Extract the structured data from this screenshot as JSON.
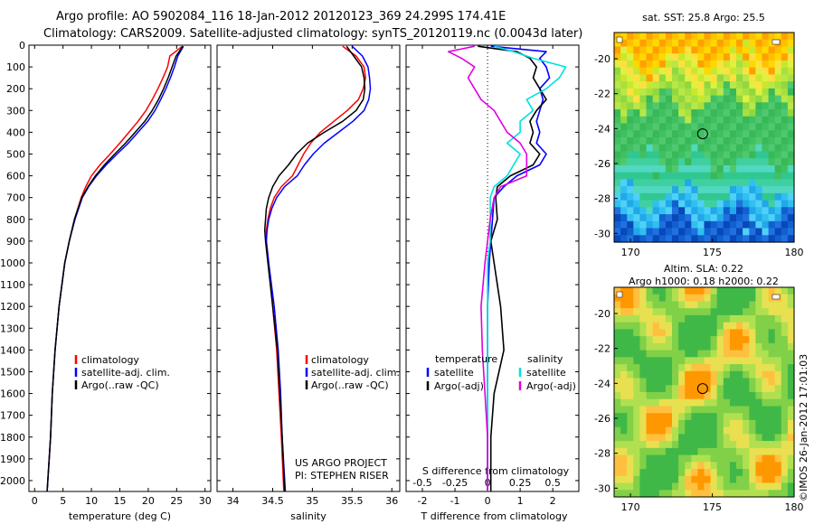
{
  "header": {
    "title_line1": "Argo profile: AO 5902084_116 18-Jan-2012 20120123_369 24.299S 174.41E",
    "title_line2": "Climatology: CARS2009. Satellite-adjusted climatology: synTS_20120119.nc (0.0043d later)"
  },
  "credits": {
    "project": "US ARGO PROJECT",
    "pi": "PI: STEPHEN RISER",
    "stamp": "©IMOS 26-Jan-2012 17:01:03"
  },
  "colors": {
    "climatology": "#ff0000",
    "satellite": "#0000ff",
    "argo": "#000000",
    "satellite_salinity": "#00e0e0",
    "argo_salinity_diff": "#e000e0"
  },
  "chart_data": [
    {
      "id": "temperature",
      "type": "line",
      "xlabel": "temperature (deg C)",
      "ylabel": "",
      "xlim": [
        -1,
        31
      ],
      "ylim": [
        2050,
        0
      ],
      "xticks": [
        0,
        5,
        10,
        15,
        20,
        25,
        30
      ],
      "yticks": [
        0,
        100,
        200,
        300,
        400,
        500,
        600,
        700,
        800,
        900,
        1000,
        1100,
        1200,
        1300,
        1400,
        1500,
        1600,
        1700,
        1800,
        1900,
        2000
      ],
      "legend": [
        "climatology",
        "satellite-adj. clim.",
        "Argo(..raw -QC)"
      ],
      "y": [
        5,
        50,
        100,
        150,
        200,
        250,
        300,
        350,
        400,
        450,
        500,
        550,
        600,
        650,
        700,
        800,
        900,
        1000,
        1200,
        1400,
        1600,
        1800,
        2050
      ],
      "series": [
        {
          "name": "climatology",
          "color": "#ff0000",
          "values": [
            26,
            23.8,
            23.4,
            22.6,
            21.7,
            20.7,
            19.6,
            18.2,
            16.6,
            15,
            13.3,
            11.5,
            10,
            9,
            8.2,
            7,
            6.1,
            5.3,
            4.3,
            3.6,
            3.1,
            2.8,
            2.2
          ]
        },
        {
          "name": "satellite-adj. clim.",
          "color": "#0000ff",
          "values": [
            26.2,
            25.2,
            24.6,
            23.9,
            23.1,
            22.2,
            21.2,
            19.9,
            18.2,
            16.5,
            14.5,
            12.6,
            10.9,
            9.5,
            8.4,
            7.1,
            6.1,
            5.3,
            4.3,
            3.6,
            3.1,
            2.8,
            2.2
          ]
        },
        {
          "name": "Argo(..raw -QC)",
          "color": "#000000",
          "values": [
            26.1,
            24.9,
            24.2,
            23.5,
            22.7,
            21.8,
            20.7,
            19.4,
            17.7,
            16,
            14.1,
            12.3,
            10.7,
            9.4,
            8.3,
            7,
            6.1,
            5.3,
            4.3,
            3.6,
            3.1,
            2.8,
            2.2
          ]
        }
      ]
    },
    {
      "id": "salinity",
      "type": "line",
      "xlabel": "salinity",
      "ylabel": "",
      "xlim": [
        33.8,
        36.1
      ],
      "ylim": [
        2050,
        0
      ],
      "xticks": [
        34,
        34.5,
        35,
        35.5,
        36
      ],
      "legend": [
        "climatology",
        "satellite-adj. clim.",
        "Argo(..raw -QC)"
      ],
      "y": [
        5,
        50,
        100,
        150,
        200,
        250,
        300,
        350,
        400,
        450,
        500,
        550,
        600,
        650,
        700,
        750,
        800,
        850,
        900,
        1000,
        1200,
        1400,
        1600,
        1800,
        2050
      ],
      "series": [
        {
          "name": "climatology",
          "color": "#ff0000",
          "values": [
            35.38,
            35.55,
            35.65,
            35.67,
            35.64,
            35.58,
            35.44,
            35.27,
            35.1,
            34.98,
            34.89,
            34.82,
            34.75,
            34.61,
            34.52,
            34.47,
            34.44,
            34.42,
            34.42,
            34.45,
            34.5,
            34.55,
            34.58,
            34.61,
            34.64
          ]
        },
        {
          "name": "satellite-adj. clim.",
          "color": "#0000ff",
          "values": [
            35.5,
            35.63,
            35.7,
            35.72,
            35.73,
            35.71,
            35.65,
            35.51,
            35.33,
            35.15,
            35.01,
            34.9,
            34.81,
            34.65,
            34.55,
            34.49,
            34.45,
            34.43,
            34.42,
            34.45,
            34.52,
            34.57,
            34.6,
            34.62,
            34.66
          ]
        },
        {
          "name": "Argo(..raw -QC)",
          "color": "#000000",
          "values": [
            35.43,
            35.52,
            35.62,
            35.65,
            35.66,
            35.64,
            35.55,
            35.38,
            35.15,
            34.94,
            34.8,
            34.7,
            34.58,
            34.5,
            34.45,
            34.42,
            34.41,
            34.4,
            34.41,
            34.44,
            34.5,
            34.56,
            34.59,
            34.62,
            34.65
          ]
        }
      ]
    },
    {
      "id": "difference",
      "type": "line",
      "xlabel": "T difference from climatology",
      "x2label": "S difference from climatology",
      "xlim": [
        -2.5,
        2.8
      ],
      "x2ticks": [
        -0.5,
        -0.25,
        0,
        0.25,
        0.5
      ],
      "xticks": [
        -2,
        -1,
        0,
        1,
        2
      ],
      "ylim": [
        2050,
        0
      ],
      "legend_groups": [
        "temperature",
        "salinity"
      ],
      "y": [
        5,
        30,
        60,
        100,
        150,
        200,
        250,
        300,
        350,
        400,
        450,
        500,
        550,
        600,
        650,
        700,
        800,
        900,
        1000,
        1200,
        1400,
        1600,
        1800,
        2050
      ],
      "series": [
        {
          "name": "satellite",
          "group": "temperature",
          "color": "#0000ff",
          "values": [
            0.1,
            1.8,
            1.6,
            1.8,
            1.9,
            1.6,
            1.7,
            1.6,
            1.5,
            1.6,
            1.5,
            1.8,
            1.6,
            0.9,
            0.5,
            0.2,
            0.15,
            0.1,
            0.05,
            0,
            0,
            0,
            0,
            0
          ]
        },
        {
          "name": "Argo(-adj)",
          "group": "temperature",
          "color": "#000000",
          "values": [
            -0.3,
            0.9,
            1.3,
            1.5,
            1.4,
            1.6,
            1.8,
            1.5,
            1.3,
            1.4,
            1.3,
            1.6,
            1.4,
            0.7,
            0.3,
            0.25,
            0.3,
            0.1,
            0.2,
            0.4,
            0.5,
            0.2,
            0.1,
            0.1
          ]
        },
        {
          "name": "satellite",
          "group": "salinity",
          "color": "#00e0e0",
          "values": [
            0.05,
            0.2,
            0.35,
            0.6,
            0.55,
            0.45,
            0.3,
            0.35,
            0.25,
            0.25,
            0.15,
            0.25,
            0.2,
            0.15,
            0.05,
            0.02,
            0.02,
            0.02,
            0,
            0,
            0,
            0,
            0,
            0
          ]
        },
        {
          "name": "Argo(-adj)",
          "group": "salinity",
          "color": "#e000e0",
          "values": [
            -0.1,
            -0.3,
            -0.2,
            -0.1,
            -0.15,
            -0.1,
            -0.05,
            0.05,
            0.1,
            0.15,
            0.25,
            0.3,
            0.3,
            0.3,
            0.1,
            0.05,
            0.02,
            0,
            -0.02,
            -0.05,
            -0.04,
            -0.02,
            0,
            0
          ]
        }
      ]
    },
    {
      "id": "sst_map",
      "type": "heatmap",
      "title": "sat. SST: 25.8 Argo: 25.5",
      "xlim": [
        169,
        180
      ],
      "ylim": [
        -30.5,
        -18.5
      ],
      "xticks": [
        170,
        175,
        180
      ],
      "yticks": [
        -20,
        -22,
        -24,
        -26,
        -28,
        -30
      ],
      "marker": {
        "lon": 174.41,
        "lat": -24.3
      }
    },
    {
      "id": "sla_map",
      "type": "heatmap",
      "title_line1": "Altim. SLA: 0.22",
      "title_line2": "Argo h1000: 0.18 h2000: 0.22",
      "xlim": [
        169,
        180
      ],
      "ylim": [
        -30.5,
        -18.5
      ],
      "xticks": [
        170,
        175,
        180
      ],
      "yticks": [
        -20,
        -22,
        -24,
        -26,
        -28,
        -30
      ],
      "marker": {
        "lon": 174.41,
        "lat": -24.3
      }
    }
  ]
}
